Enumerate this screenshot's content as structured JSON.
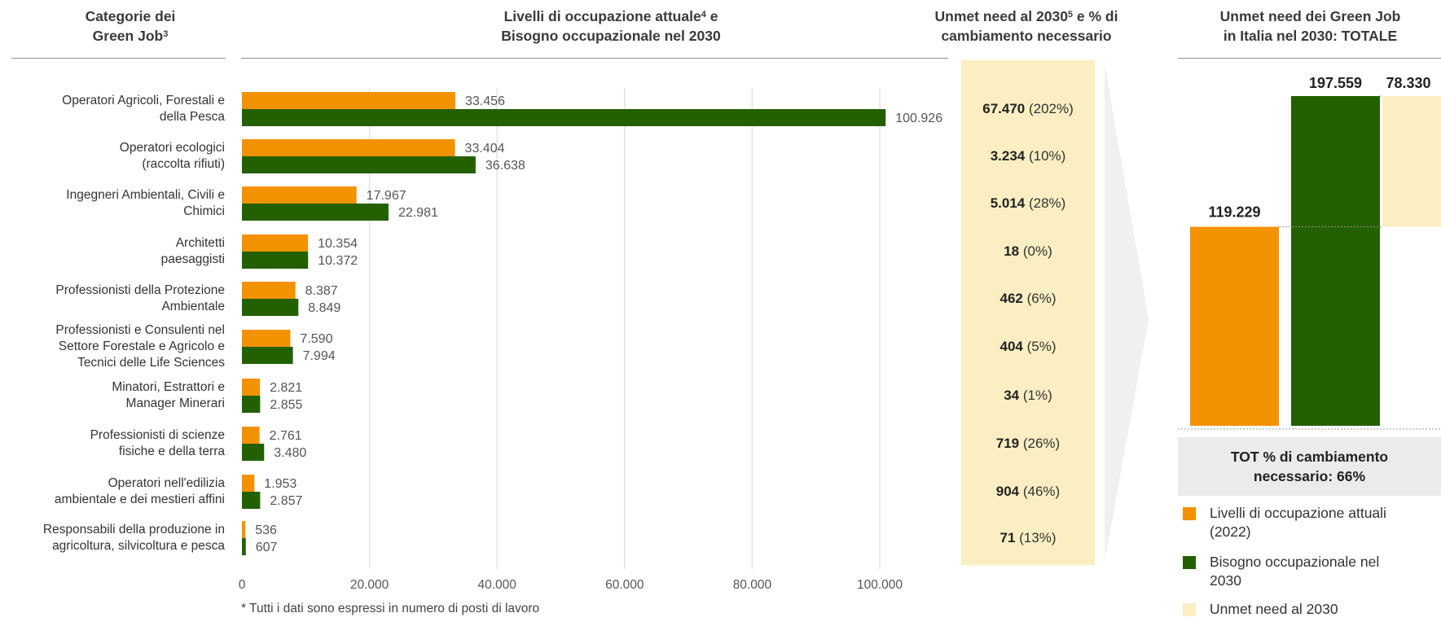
{
  "headers": {
    "categories": {
      "line1": "Categorie dei",
      "line2_pre": "Green Job",
      "line2_sup": "3"
    },
    "levels": {
      "line1_pre": "Livelli di occupazione attuale",
      "line1_sup": "4",
      "line1_post": " e",
      "line2": "Bisogno occupazionale nel 2030"
    },
    "unmet": {
      "line1_pre": "Unmet need al 2030",
      "line1_sup": "5",
      "line1_post": " e % di",
      "line2": "cambiamento necessario"
    },
    "total": {
      "line1": "Unmet need dei Green Job",
      "line2": "in Italia nel 2030: TOTALE"
    }
  },
  "colors": {
    "current": "#f39200",
    "need": "#236000",
    "unmet": "#fbeec2",
    "grid": "#e3e3e3"
  },
  "chart_data": [
    {
      "type": "bar",
      "orientation": "horizontal",
      "categories": [
        [
          "Operatori Agricoli, Forestali e",
          "della Pesca"
        ],
        [
          "Operatori ecologici",
          "(raccolta rifiuti)"
        ],
        [
          "Ingegneri Ambientali, Civili e",
          "Chimici"
        ],
        [
          "Architetti",
          "paesaggisti"
        ],
        [
          "Professionisti della Protezione",
          "Ambientale"
        ],
        [
          "Professionisti e Consulenti nel",
          "Settore Forestale e Agricolo e",
          "Tecnici delle Life Sciences"
        ],
        [
          "Minatori, Estrattori e",
          "Manager Minerari"
        ],
        [
          "Professionisti di scienze",
          "fisiche e della terra"
        ],
        [
          "Operatori nell'edilizia",
          "ambientale e dei mestieri affini"
        ],
        [
          "Responsabili della produzione in",
          "agricoltura, silvicoltura e pesca"
        ]
      ],
      "series": [
        {
          "values": [
            33456,
            33404,
            17967,
            10354,
            8387,
            7590,
            2821,
            2761,
            1953,
            536
          ],
          "labels": [
            "33.456",
            "33.404",
            "17.967",
            "10.354",
            "8.387",
            "7.590",
            "2.821",
            "2.761",
            "1.953",
            "536"
          ]
        },
        {
          "values": [
            100926,
            36638,
            22981,
            10372,
            8849,
            7994,
            2855,
            3480,
            2857,
            607
          ],
          "labels": [
            "100.926",
            "36.638",
            "22.981",
            "10.372",
            "8.849",
            "7.994",
            "2.855",
            "3.480",
            "2.857",
            "607"
          ]
        }
      ],
      "xlim": [
        0,
        110000
      ],
      "xticks": [
        0,
        20000,
        40000,
        60000,
        80000,
        100000
      ],
      "xtick_labels": [
        "0",
        "20.000",
        "40.000",
        "60.000",
        "80.000",
        "100.000"
      ],
      "grid": true,
      "unmet": [
        {
          "value": "67.470",
          "pct": "(202%)"
        },
        {
          "value": "3.234",
          "pct": "(10%)"
        },
        {
          "value": "5.014",
          "pct": "(28%)"
        },
        {
          "value": "18",
          "pct": "(0%)"
        },
        {
          "value": "462",
          "pct": "(6%)"
        },
        {
          "value": "404",
          "pct": "(5%)"
        },
        {
          "value": "34",
          "pct": "(1%)"
        },
        {
          "value": "719",
          "pct": "(26%)"
        },
        {
          "value": "904",
          "pct": "(46%)"
        },
        {
          "value": "71",
          "pct": "(13%)"
        }
      ]
    },
    {
      "type": "bar",
      "subtype": "waterfall",
      "bars": [
        {
          "key": "current",
          "value": 119229,
          "label": "119.229"
        },
        {
          "key": "need",
          "value": 197559,
          "label": "197.559"
        },
        {
          "key": "unmet",
          "value": 78330,
          "label": "78.330"
        }
      ],
      "ylim": [
        0,
        197559
      ]
    }
  ],
  "footnote": "* Tutti i dati sono espressi in numero di posti di lavoro",
  "tot_box": {
    "line1": "TOT % di cambiamento",
    "line2": "necessario: 66%"
  },
  "legend": [
    {
      "key": "current",
      "line1": "Livelli di occupazione attuali",
      "line2": "(2022)"
    },
    {
      "key": "need",
      "line1": "Bisogno occupazionale nel",
      "line2": "2030"
    },
    {
      "key": "unmet",
      "line1": "Unmet need al 2030",
      "line2": ""
    }
  ]
}
